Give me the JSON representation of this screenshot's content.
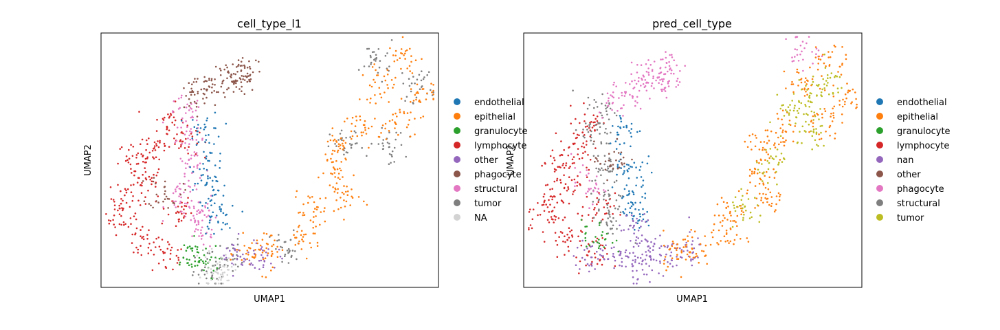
{
  "chart_data": [
    {
      "type": "scatter",
      "title": "cell_type_l1",
      "xlabel": "UMAP1",
      "ylabel": "UMAP2",
      "grid": false,
      "ticks": false,
      "legend_placement": "right",
      "categories": [
        {
          "name": "endothelial",
          "color": "#1f77b4"
        },
        {
          "name": "epithelial",
          "color": "#ff7f0e"
        },
        {
          "name": "granulocyte",
          "color": "#2ca02c"
        },
        {
          "name": "lymphocyte",
          "color": "#d62728"
        },
        {
          "name": "other",
          "color": "#9467bd"
        },
        {
          "name": "phagocyte",
          "color": "#8c564b"
        },
        {
          "name": "structural",
          "color": "#e377c2"
        },
        {
          "name": "tumor",
          "color": "#7f7f7f"
        },
        {
          "name": "NA",
          "color": "#d3d3d3"
        }
      ],
      "clusters": [
        {
          "category": "lymphocyte",
          "points": [
            [
              0.14,
              0.42
            ],
            [
              0.08,
              0.35
            ],
            [
              0.12,
              0.18
            ],
            [
              0.2,
              0.12
            ],
            [
              0.22,
              0.3
            ],
            [
              0.16,
              0.55
            ],
            [
              0.2,
              0.65
            ],
            [
              0.24,
              0.58
            ],
            [
              0.06,
              0.28
            ],
            [
              0.1,
              0.5
            ]
          ]
        },
        {
          "category": "structural",
          "points": [
            [
              0.26,
              0.58
            ],
            [
              0.27,
              0.45
            ],
            [
              0.29,
              0.3
            ],
            [
              0.3,
              0.22
            ],
            [
              0.25,
              0.68
            ],
            [
              0.24,
              0.35
            ]
          ]
        },
        {
          "category": "endothelial",
          "points": [
            [
              0.31,
              0.62
            ],
            [
              0.32,
              0.48
            ],
            [
              0.33,
              0.38
            ],
            [
              0.34,
              0.27
            ]
          ]
        },
        {
          "category": "phagocyte",
          "points": [
            [
              0.27,
              0.75
            ],
            [
              0.32,
              0.78
            ],
            [
              0.38,
              0.83
            ],
            [
              0.43,
              0.86
            ],
            [
              0.41,
              0.81
            ],
            [
              0.19,
              0.38
            ]
          ]
        },
        {
          "category": "granulocyte",
          "points": [
            [
              0.26,
              0.12
            ],
            [
              0.3,
              0.1
            ]
          ]
        },
        {
          "category": "tumor",
          "points": [
            [
              0.32,
              0.05
            ],
            [
              0.37,
              0.12
            ],
            [
              0.55,
              0.15
            ],
            [
              0.73,
              0.55
            ],
            [
              0.82,
              0.9
            ],
            [
              0.94,
              0.8
            ],
            [
              0.85,
              0.55
            ]
          ]
        },
        {
          "category": "epithelial",
          "points": [
            [
              0.5,
              0.15
            ],
            [
              0.62,
              0.3
            ],
            [
              0.7,
              0.45
            ],
            [
              0.78,
              0.62
            ],
            [
              0.82,
              0.8
            ],
            [
              0.9,
              0.9
            ],
            [
              0.95,
              0.75
            ],
            [
              0.88,
              0.65
            ],
            [
              0.72,
              0.35
            ],
            [
              0.6,
              0.2
            ],
            [
              0.45,
              0.13
            ],
            [
              0.7,
              0.55
            ]
          ]
        },
        {
          "category": "other",
          "points": [
            [
              0.4,
              0.12
            ],
            [
              0.48,
              0.12
            ]
          ]
        },
        {
          "category": "NA",
          "points": [
            [
              0.34,
              0.06
            ],
            [
              0.36,
              0.08
            ]
          ]
        }
      ]
    },
    {
      "type": "scatter",
      "title": "pred_cell_type",
      "xlabel": "UMAP1",
      "ylabel": "UMAP2",
      "grid": false,
      "ticks": false,
      "legend_placement": "right",
      "categories": [
        {
          "name": "endothelial",
          "color": "#1f77b4"
        },
        {
          "name": "epithelial",
          "color": "#ff7f0e"
        },
        {
          "name": "granulocyte",
          "color": "#2ca02c"
        },
        {
          "name": "lymphocyte",
          "color": "#d62728"
        },
        {
          "name": "nan",
          "color": "#9467bd"
        },
        {
          "name": "other",
          "color": "#8c564b"
        },
        {
          "name": "phagocyte",
          "color": "#e377c2"
        },
        {
          "name": "structural",
          "color": "#7f7f7f"
        },
        {
          "name": "tumor",
          "color": "#bcbd22"
        }
      ],
      "clusters": [
        {
          "category": "lymphocyte",
          "points": [
            [
              0.14,
              0.42
            ],
            [
              0.08,
              0.35
            ],
            [
              0.12,
              0.18
            ],
            [
              0.2,
              0.12
            ],
            [
              0.22,
              0.3
            ],
            [
              0.16,
              0.55
            ],
            [
              0.2,
              0.65
            ],
            [
              0.06,
              0.28
            ],
            [
              0.1,
              0.5
            ]
          ]
        },
        {
          "category": "structural",
          "points": [
            [
              0.22,
              0.6
            ],
            [
              0.24,
              0.48
            ],
            [
              0.25,
              0.35
            ],
            [
              0.26,
              0.25
            ],
            [
              0.23,
              0.7
            ]
          ]
        },
        {
          "category": "endothelial",
          "points": [
            [
              0.3,
              0.62
            ],
            [
              0.31,
              0.48
            ],
            [
              0.32,
              0.38
            ],
            [
              0.33,
              0.28
            ]
          ]
        },
        {
          "category": "phagocyte",
          "points": [
            [
              0.27,
              0.75
            ],
            [
              0.32,
              0.78
            ],
            [
              0.38,
              0.83
            ],
            [
              0.43,
              0.86
            ],
            [
              0.41,
              0.81
            ],
            [
              0.82,
              0.93
            ],
            [
              0.19,
              0.4
            ]
          ]
        },
        {
          "category": "nan",
          "points": [
            [
              0.2,
              0.12
            ],
            [
              0.28,
              0.12
            ],
            [
              0.33,
              0.08
            ],
            [
              0.36,
              0.15
            ],
            [
              0.42,
              0.13
            ],
            [
              0.48,
              0.15
            ],
            [
              0.33,
              0.22
            ]
          ]
        },
        {
          "category": "other",
          "points": [
            [
              0.26,
              0.5
            ]
          ]
        },
        {
          "category": "granulocyte",
          "points": [
            [
              0.22,
              0.2
            ]
          ]
        },
        {
          "category": "epithelial",
          "points": [
            [
              0.5,
              0.15
            ],
            [
              0.62,
              0.3
            ],
            [
              0.7,
              0.45
            ],
            [
              0.78,
              0.62
            ],
            [
              0.82,
              0.8
            ],
            [
              0.9,
              0.9
            ],
            [
              0.95,
              0.75
            ],
            [
              0.88,
              0.65
            ],
            [
              0.72,
              0.35
            ],
            [
              0.6,
              0.2
            ],
            [
              0.45,
              0.15
            ],
            [
              0.7,
              0.55
            ]
          ]
        },
        {
          "category": "tumor",
          "points": [
            [
              0.8,
              0.68
            ],
            [
              0.84,
              0.75
            ],
            [
              0.74,
              0.5
            ],
            [
              0.86,
              0.6
            ],
            [
              0.66,
              0.3
            ],
            [
              0.9,
              0.8
            ]
          ]
        }
      ]
    }
  ]
}
